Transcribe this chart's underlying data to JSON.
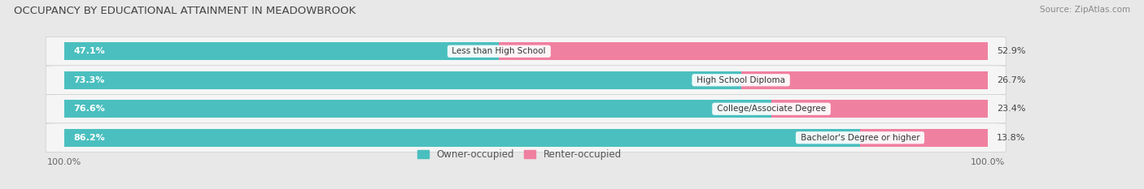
{
  "title": "OCCUPANCY BY EDUCATIONAL ATTAINMENT IN MEADOWBROOK",
  "source": "Source: ZipAtlas.com",
  "categories": [
    "Less than High School",
    "High School Diploma",
    "College/Associate Degree",
    "Bachelor's Degree or higher"
  ],
  "owner_pct": [
    47.1,
    73.3,
    76.6,
    86.2
  ],
  "renter_pct": [
    52.9,
    26.7,
    23.4,
    13.8
  ],
  "owner_color": "#4bbfbf",
  "renter_color": "#f080a0",
  "bg_color": "#e8e8e8",
  "row_bg_color": "#f5f5f5",
  "bar_height": 0.62,
  "title_fontsize": 9.5,
  "label_fontsize": 8.0,
  "legend_fontsize": 8.5,
  "axis_label_fontsize": 8
}
